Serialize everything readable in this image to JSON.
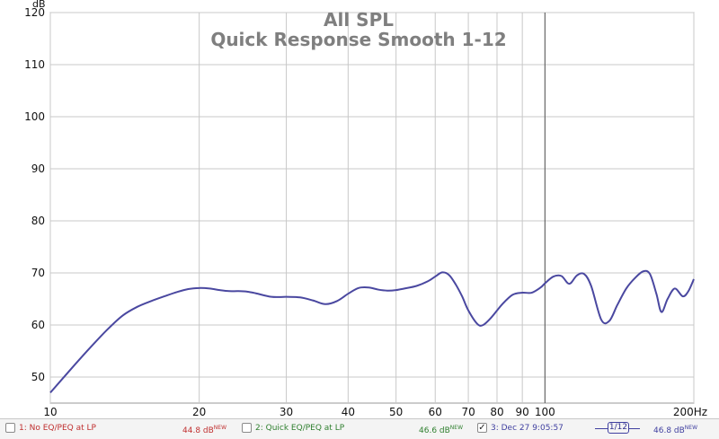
{
  "chart_data": {
    "type": "line",
    "title": "All SPL",
    "subtitle": "Quick Response Smooth 1-12",
    "ylabel": "dB",
    "xunit": "Hz",
    "xscale": "log",
    "xlim": [
      10,
      200
    ],
    "ylim": [
      45,
      120
    ],
    "yticks": [
      50,
      60,
      70,
      80,
      90,
      100,
      110,
      120
    ],
    "xticks": [
      10,
      20,
      30,
      40,
      50,
      60,
      70,
      80,
      90,
      100,
      200
    ],
    "xtick_labels": [
      "10",
      "20",
      "30",
      "40",
      "50",
      "60",
      "70",
      "80",
      "90",
      "100",
      "200Hz"
    ],
    "grid": true,
    "cursor_x": 100,
    "series": [
      {
        "name": "3: Dec 27 9:05:57",
        "color": "#4a48a0",
        "x": [
          10,
          11,
          12,
          13,
          14,
          15,
          16,
          17,
          18,
          19,
          20,
          21,
          22,
          23,
          24,
          25,
          26,
          28,
          30,
          32,
          34,
          36,
          38,
          40,
          42,
          44,
          46,
          48,
          50,
          52,
          55,
          58,
          60,
          62,
          64,
          66,
          68,
          70,
          73,
          75,
          78,
          82,
          86,
          90,
          94,
          98,
          100,
          104,
          108,
          112,
          116,
          120,
          124,
          130,
          135,
          140,
          146,
          152,
          158,
          163,
          168,
          172,
          177,
          183,
          190,
          195,
          200
        ],
        "values": [
          47.0,
          51.5,
          55.5,
          59.0,
          61.8,
          63.5,
          64.6,
          65.5,
          66.3,
          66.9,
          67.1,
          67.0,
          66.7,
          66.5,
          66.5,
          66.4,
          66.1,
          65.4,
          65.4,
          65.3,
          64.7,
          64.0,
          64.6,
          66.0,
          67.1,
          67.2,
          66.8,
          66.6,
          66.7,
          67.0,
          67.5,
          68.4,
          69.3,
          70.1,
          69.6,
          67.8,
          65.5,
          62.8,
          60.2,
          60.0,
          61.5,
          64.0,
          65.8,
          66.2,
          66.2,
          67.2,
          68.0,
          69.3,
          69.4,
          67.9,
          69.5,
          69.8,
          67.5,
          61.0,
          60.8,
          63.8,
          67.0,
          69.0,
          70.3,
          69.8,
          66.0,
          62.5,
          65.0,
          67.0,
          65.5,
          66.5,
          68.8
        ]
      }
    ]
  },
  "legend": [
    {
      "label": "1: No EQ/PEQ at LP",
      "value": "44.8 dB",
      "badge": "NEW",
      "checked": false,
      "color": "#c03030"
    },
    {
      "label": "2: Quick EQ/PEQ at LP",
      "value": "46.6 dB",
      "badge": "NEW",
      "checked": false,
      "color": "#308030"
    },
    {
      "label": "3: Dec 27 9:05:57",
      "value": "46.8 dB",
      "badge": "NEW",
      "checked": true,
      "color": "#4040a0",
      "check_mark": "✓",
      "smoothing": "1/12"
    }
  ]
}
